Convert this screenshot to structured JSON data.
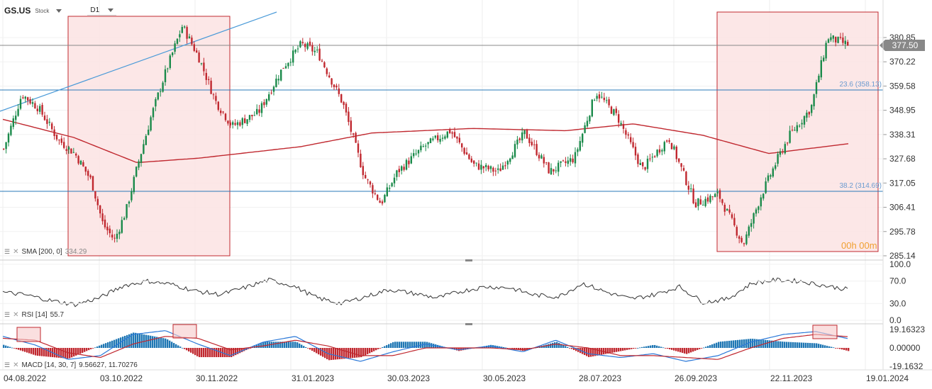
{
  "header": {
    "symbol": "GS.US",
    "kind": "Stock",
    "timeframe": "D1"
  },
  "price_scale": {
    "ticks": [
      "380.85",
      "370.22",
      "359.58",
      "348.95",
      "338.31",
      "327.68",
      "317.05",
      "306.41",
      "295.78",
      "285.14"
    ],
    "last_price": "377.50",
    "countdown": "00h 00m"
  },
  "fib_levels": [
    {
      "label": "23.6 (358.13)",
      "value": 358.13
    },
    {
      "label": "38.2 (314.69)",
      "value": 314.69
    }
  ],
  "indicators": {
    "sma": {
      "name": "SMA [200, 0]",
      "value": "334.29"
    },
    "rsi": {
      "name": "RSI [14]",
      "value": "55.7",
      "ticks": [
        "100.0",
        "70.0",
        "30.0",
        "0.0"
      ]
    },
    "macd": {
      "name": "MACD [14, 30, 7]",
      "value": "9.56627,  11.70276",
      "ticks": [
        "19.16323",
        "0.00000",
        "-19.1632"
      ]
    }
  },
  "x_axis": [
    "04.08.2022",
    "03.10.2022",
    "30.11.2022",
    "31.01.2023",
    "30.03.2023",
    "30.05.2023",
    "28.07.2023",
    "26.09.2023",
    "22.11.2023",
    "19.01.2024"
  ],
  "colors": {
    "up": "#1a8a4a",
    "down": "#c0282f",
    "sma": "#c0282f",
    "fib": "#2a78b8",
    "highlight": "#c0282f"
  },
  "chart_data": {
    "type": "candlestick",
    "instrument": "GS.US",
    "timeframe": "D1",
    "ylim": [
      285.14,
      390.0
    ],
    "price_series": [
      {
        "date": "2022-08-04",
        "close": 332
      },
      {
        "date": "2022-08-15",
        "close": 356
      },
      {
        "date": "2022-08-25",
        "close": 350
      },
      {
        "date": "2022-09-06",
        "close": 336
      },
      {
        "date": "2022-09-16",
        "close": 330
      },
      {
        "date": "2022-09-26",
        "close": 318
      },
      {
        "date": "2022-10-03",
        "close": 299
      },
      {
        "date": "2022-10-10",
        "close": 292
      },
      {
        "date": "2022-10-17",
        "close": 305
      },
      {
        "date": "2022-10-24",
        "close": 325
      },
      {
        "date": "2022-11-01",
        "close": 346
      },
      {
        "date": "2022-11-10",
        "close": 366
      },
      {
        "date": "2022-11-20",
        "close": 386
      },
      {
        "date": "2022-11-30",
        "close": 372
      },
      {
        "date": "2022-12-10",
        "close": 353
      },
      {
        "date": "2022-12-20",
        "close": 342
      },
      {
        "date": "2023-01-05",
        "close": 348
      },
      {
        "date": "2023-01-20",
        "close": 368
      },
      {
        "date": "2023-01-31",
        "close": 378
      },
      {
        "date": "2023-02-10",
        "close": 374
      },
      {
        "date": "2023-02-25",
        "close": 352
      },
      {
        "date": "2023-03-10",
        "close": 320
      },
      {
        "date": "2023-03-20",
        "close": 308
      },
      {
        "date": "2023-03-30",
        "close": 322
      },
      {
        "date": "2023-04-15",
        "close": 333
      },
      {
        "date": "2023-05-01",
        "close": 340
      },
      {
        "date": "2023-05-15",
        "close": 325
      },
      {
        "date": "2023-05-30",
        "close": 322
      },
      {
        "date": "2023-06-15",
        "close": 339
      },
      {
        "date": "2023-06-30",
        "close": 322
      },
      {
        "date": "2023-07-15",
        "close": 328
      },
      {
        "date": "2023-07-28",
        "close": 357
      },
      {
        "date": "2023-08-10",
        "close": 346
      },
      {
        "date": "2023-08-25",
        "close": 323
      },
      {
        "date": "2023-09-10",
        "close": 337
      },
      {
        "date": "2023-09-26",
        "close": 308
      },
      {
        "date": "2023-10-10",
        "close": 312
      },
      {
        "date": "2023-10-25",
        "close": 290
      },
      {
        "date": "2023-11-05",
        "close": 312
      },
      {
        "date": "2023-11-15",
        "close": 328
      },
      {
        "date": "2023-11-22",
        "close": 338
      },
      {
        "date": "2023-12-05",
        "close": 350
      },
      {
        "date": "2023-12-15",
        "close": 381
      },
      {
        "date": "2023-12-28",
        "close": 377.5
      }
    ],
    "sma_200": [
      {
        "date": "2022-08-04",
        "value": 345
      },
      {
        "date": "2022-09-16",
        "value": 337
      },
      {
        "date": "2022-10-24",
        "value": 326
      },
      {
        "date": "2022-12-01",
        "value": 328
      },
      {
        "date": "2023-01-31",
        "value": 333
      },
      {
        "date": "2023-03-15",
        "value": 339
      },
      {
        "date": "2023-05-15",
        "value": 341
      },
      {
        "date": "2023-07-10",
        "value": 340
      },
      {
        "date": "2023-08-20",
        "value": 343
      },
      {
        "date": "2023-10-01",
        "value": 338
      },
      {
        "date": "2023-11-10",
        "value": 330
      },
      {
        "date": "2023-12-28",
        "value": 334.29
      }
    ],
    "rsi_series": [
      50,
      45,
      35,
      28,
      40,
      62,
      70,
      64,
      52,
      46,
      58,
      72,
      62,
      40,
      30,
      42,
      55,
      48,
      40,
      52,
      60,
      58,
      45,
      42,
      66,
      50,
      38,
      46,
      60,
      32,
      38,
      66,
      72,
      70,
      62,
      55
    ],
    "macd_series": [
      {
        "macd": 12,
        "signal": 10
      },
      {
        "macd": 3,
        "signal": 8
      },
      {
        "macd": -12,
        "signal": -5
      },
      {
        "macd": -8,
        "signal": -10
      },
      {
        "macd": 14,
        "signal": 4
      },
      {
        "macd": 18,
        "signal": 12
      },
      {
        "macd": 4,
        "signal": 10
      },
      {
        "macd": -8,
        "signal": -2
      },
      {
        "macd": 6,
        "signal": 2
      },
      {
        "macd": 12,
        "signal": 8
      },
      {
        "macd": -6,
        "signal": 2
      },
      {
        "macd": -14,
        "signal": -8
      },
      {
        "macd": -4,
        "signal": -8
      },
      {
        "macd": 4,
        "signal": 0
      },
      {
        "macd": -2,
        "signal": 0
      },
      {
        "macd": 2,
        "signal": 0
      },
      {
        "macd": -4,
        "signal": -2
      },
      {
        "macd": 8,
        "signal": 4
      },
      {
        "macd": -6,
        "signal": 0
      },
      {
        "macd": -10,
        "signal": -8
      },
      {
        "macd": -6,
        "signal": -8
      },
      {
        "macd": -14,
        "signal": -10
      },
      {
        "macd": -8,
        "signal": -12
      },
      {
        "macd": 6,
        "signal": 0
      },
      {
        "macd": 14,
        "signal": 10
      },
      {
        "macd": 17,
        "signal": 14
      },
      {
        "macd": 9.56627,
        "signal": 11.70276
      }
    ],
    "annotations": [
      "23.6 (358.13)",
      "38.2 (314.69)"
    ]
  }
}
